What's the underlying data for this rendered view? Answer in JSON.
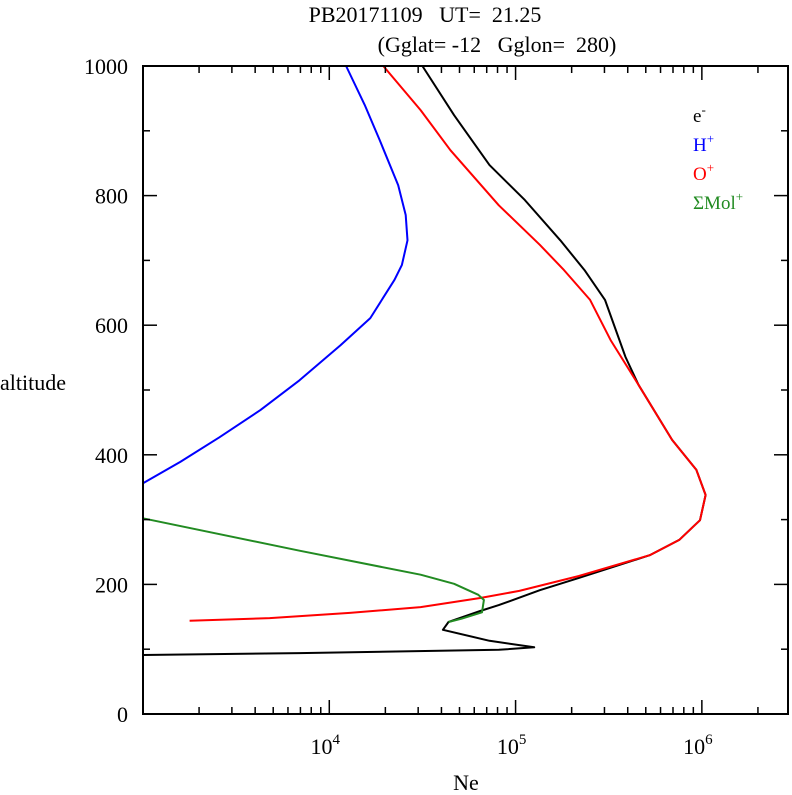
{
  "chart_data": {
    "type": "line",
    "title": "PB20171109   UT=  21.25",
    "subtitle": "(Gglat= -12   Gglon=  280)",
    "xlabel": "Ne",
    "ylabel": "altitude",
    "xscale": "log",
    "xlim": [
      1000,
      2900000
    ],
    "ylim": [
      0,
      1000
    ],
    "yticks": [
      0,
      200,
      400,
      600,
      800,
      1000
    ],
    "ytick_labels": [
      "0",
      "200",
      "400",
      "600",
      "800",
      "1000"
    ],
    "xticks": [
      {
        "base": "10",
        "exp": "4",
        "value": 10000
      },
      {
        "base": "10",
        "exp": "5",
        "value": 100000
      },
      {
        "base": "10",
        "exp": "6",
        "value": 1000000
      }
    ],
    "grid": false,
    "legend_position": "top-right",
    "series": [
      {
        "name": "e-",
        "label_base": "e",
        "label_sup": "-",
        "color": "#000000",
        "log10_x": [
          4.5,
          4.67,
          4.86,
          5.05,
          5.24,
          5.37,
          5.48,
          5.59,
          5.66,
          5.84,
          5.97,
          6.02,
          5.99,
          5.88,
          5.72,
          5.34,
          5.13,
          4.91,
          4.81,
          4.64,
          4.61,
          4.86,
          5.1,
          4.91,
          3.84,
          3.0
        ],
        "y": [
          1000,
          924,
          847,
          793,
          731,
          685,
          639,
          551,
          508,
          423,
          377,
          338,
          299,
          269,
          245,
          210,
          191,
          168,
          159,
          142,
          130,
          113,
          103,
          99,
          94,
          91
        ]
      },
      {
        "name": "H+",
        "label_base": "H",
        "label_sup": "+",
        "color": "#0000ff",
        "log10_x": [
          4.09,
          4.19,
          4.27,
          4.37,
          4.41,
          4.42,
          4.39,
          4.35,
          4.22,
          4.06,
          3.84,
          3.63,
          3.41,
          3.2,
          3.0
        ],
        "y": [
          1000,
          940,
          886,
          816,
          770,
          731,
          693,
          670,
          611,
          569,
          515,
          469,
          427,
          389,
          356
        ]
      },
      {
        "name": "O+",
        "label_base": "O",
        "label_sup": "+",
        "color": "#ff0000",
        "log10_x": [
          4.29,
          4.49,
          4.65,
          4.91,
          5.13,
          5.26,
          5.4,
          5.51,
          5.66,
          5.84,
          5.97,
          6.02,
          5.99,
          5.88,
          5.72,
          5.34,
          5.02,
          4.81,
          4.49,
          4.11,
          3.68,
          3.25
        ],
        "y": [
          1000,
          932,
          870,
          785,
          724,
          685,
          639,
          577,
          508,
          423,
          377,
          338,
          299,
          269,
          245,
          213,
          190,
          179,
          165,
          156,
          148,
          144
        ]
      },
      {
        "name": "ΣMol+",
        "label_base": "ΣMol",
        "label_sup": "+",
        "color": "#228b22",
        "log10_x": [
          3.0,
          3.84,
          4.49,
          4.67,
          4.8,
          4.83,
          4.82,
          4.71,
          4.64
        ],
        "y": [
          302,
          252,
          215,
          201,
          184,
          176,
          157,
          147,
          142
        ]
      }
    ]
  }
}
